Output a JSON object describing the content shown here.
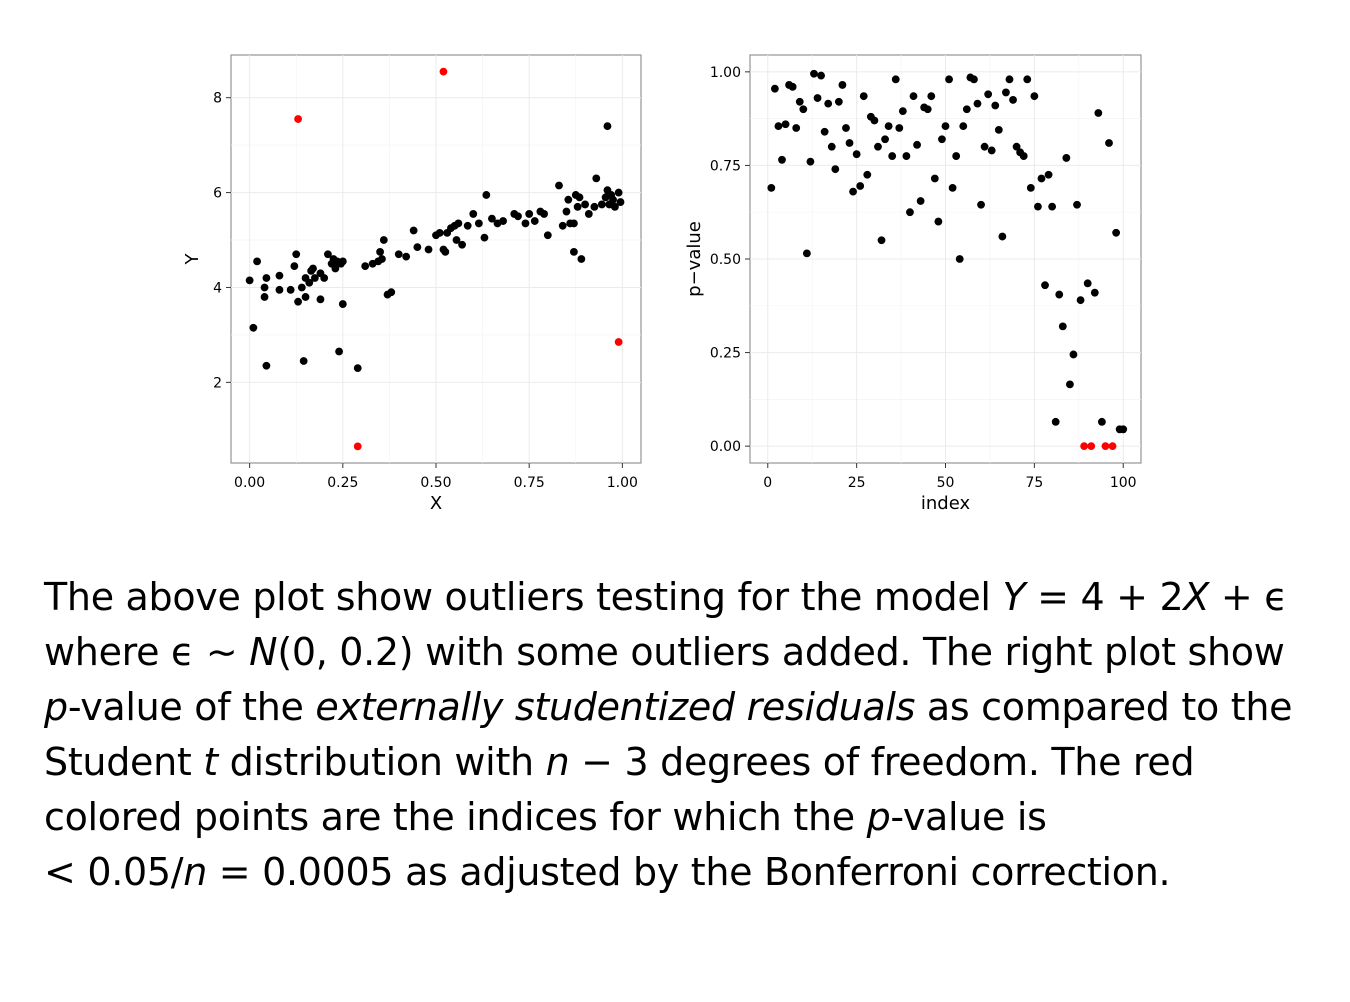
{
  "colors": {
    "outlier": "#ff0000",
    "normal": "#000000",
    "grid": "#ebebeb",
    "frame": "#7f7f7f"
  },
  "chart_data": [
    {
      "type": "scatter",
      "title": "",
      "xlabel": "X",
      "ylabel": "Y",
      "xlim": [
        -0.05,
        1.05
      ],
      "ylim": [
        0.3,
        8.9
      ],
      "xticks": [
        "0.00",
        "0.25",
        "0.50",
        "0.75",
        "1.00"
      ],
      "xtick_values": [
        0,
        0.25,
        0.5,
        0.75,
        1
      ],
      "yticks": [
        "2",
        "4",
        "6",
        "8"
      ],
      "ytick_values": [
        2,
        4,
        6,
        8
      ],
      "grid": true,
      "series": [
        {
          "color": "#000000",
          "points": [
            [
              0.0,
              4.15
            ],
            [
              0.01,
              3.15
            ],
            [
              0.04,
              4.0
            ],
            [
              0.04,
              3.8
            ],
            [
              0.045,
              4.2
            ],
            [
              0.045,
              2.35
            ],
            [
              0.08,
              4.25
            ],
            [
              0.08,
              3.95
            ],
            [
              0.11,
              3.95
            ],
            [
              0.12,
              4.45
            ],
            [
              0.125,
              4.7
            ],
            [
              0.13,
              3.7
            ],
            [
              0.14,
              4.0
            ],
            [
              0.145,
              2.45
            ],
            [
              0.15,
              4.2
            ],
            [
              0.15,
              3.8
            ],
            [
              0.16,
              4.1
            ],
            [
              0.165,
              4.35
            ],
            [
              0.17,
              4.4
            ],
            [
              0.175,
              4.2
            ],
            [
              0.19,
              3.75
            ],
            [
              0.19,
              4.3
            ],
            [
              0.2,
              4.2
            ],
            [
              0.21,
              4.7
            ],
            [
              0.22,
              4.5
            ],
            [
              0.225,
              4.6
            ],
            [
              0.23,
              4.4
            ],
            [
              0.235,
              4.55
            ],
            [
              0.24,
              2.65
            ],
            [
              0.245,
              4.5
            ],
            [
              0.25,
              4.55
            ],
            [
              0.25,
              3.65
            ],
            [
              0.31,
              4.45
            ],
            [
              0.33,
              4.5
            ],
            [
              0.345,
              4.55
            ],
            [
              0.35,
              4.75
            ],
            [
              0.355,
              4.6
            ],
            [
              0.36,
              5.0
            ],
            [
              0.37,
              3.85
            ],
            [
              0.38,
              3.9
            ],
            [
              0.4,
              4.7
            ],
            [
              0.42,
              4.65
            ],
            [
              0.44,
              5.2
            ],
            [
              0.45,
              4.85
            ],
            [
              0.48,
              4.8
            ],
            [
              0.5,
              5.1
            ],
            [
              0.51,
              5.15
            ],
            [
              0.52,
              4.8
            ],
            [
              0.525,
              4.75
            ],
            [
              0.53,
              5.15
            ],
            [
              0.54,
              5.25
            ],
            [
              0.55,
              5.3
            ],
            [
              0.555,
              5.0
            ],
            [
              0.56,
              5.35
            ],
            [
              0.57,
              4.9
            ],
            [
              0.585,
              5.3
            ],
            [
              0.6,
              5.55
            ],
            [
              0.615,
              5.35
            ],
            [
              0.63,
              5.05
            ],
            [
              0.635,
              5.95
            ],
            [
              0.65,
              5.45
            ],
            [
              0.665,
              5.35
            ],
            [
              0.68,
              5.4
            ],
            [
              0.71,
              5.55
            ],
            [
              0.72,
              5.5
            ],
            [
              0.74,
              5.35
            ],
            [
              0.75,
              5.55
            ],
            [
              0.765,
              5.4
            ],
            [
              0.78,
              5.6
            ],
            [
              0.79,
              5.55
            ],
            [
              0.8,
              5.1
            ],
            [
              0.83,
              6.15
            ],
            [
              0.84,
              5.3
            ],
            [
              0.85,
              5.6
            ],
            [
              0.855,
              5.85
            ],
            [
              0.86,
              5.35
            ],
            [
              0.87,
              5.35
            ],
            [
              0.875,
              5.95
            ],
            [
              0.88,
              5.7
            ],
            [
              0.885,
              5.9
            ],
            [
              0.89,
              4.6
            ],
            [
              0.9,
              5.75
            ],
            [
              0.91,
              5.55
            ],
            [
              0.925,
              5.7
            ],
            [
              0.93,
              6.3
            ],
            [
              0.945,
              5.75
            ],
            [
              0.955,
              5.9
            ],
            [
              0.96,
              6.05
            ],
            [
              0.96,
              7.4
            ],
            [
              0.965,
              5.75
            ],
            [
              0.97,
              5.95
            ],
            [
              0.975,
              5.85
            ],
            [
              0.98,
              5.7
            ],
            [
              0.99,
              6.0
            ],
            [
              0.995,
              5.8
            ],
            [
              0.87,
              4.75
            ],
            [
              0.29,
              2.3
            ],
            [
              0.02,
              4.55
            ]
          ]
        },
        {
          "color": "#ff0000",
          "points": [
            [
              0.13,
              7.55
            ],
            [
              0.52,
              8.55
            ],
            [
              0.29,
              0.65
            ],
            [
              0.99,
              2.85
            ]
          ]
        }
      ]
    },
    {
      "type": "scatter",
      "title": "",
      "xlabel": "index",
      "ylabel": "p−value",
      "xlim": [
        -5,
        105
      ],
      "ylim": [
        -0.045,
        1.045
      ],
      "xticks": [
        "0",
        "25",
        "50",
        "75",
        "100"
      ],
      "xtick_values": [
        0,
        25,
        50,
        75,
        100
      ],
      "yticks": [
        "0.00",
        "0.25",
        "0.50",
        "0.75",
        "1.00"
      ],
      "ytick_values": [
        0,
        0.25,
        0.5,
        0.75,
        1
      ],
      "grid": true,
      "series": [
        {
          "color": "#000000",
          "points": [
            [
              1,
              0.69
            ],
            [
              2,
              0.955
            ],
            [
              3,
              0.855
            ],
            [
              4,
              0.765
            ],
            [
              5,
              0.86
            ],
            [
              6,
              0.965
            ],
            [
              7,
              0.96
            ],
            [
              8,
              0.85
            ],
            [
              9,
              0.92
            ],
            [
              10,
              0.9
            ],
            [
              11,
              0.515
            ],
            [
              12,
              0.76
            ],
            [
              13,
              0.995
            ],
            [
              14,
              0.93
            ],
            [
              15,
              0.99
            ],
            [
              16,
              0.84
            ],
            [
              17,
              0.915
            ],
            [
              18,
              0.8
            ],
            [
              19,
              0.74
            ],
            [
              20,
              0.92
            ],
            [
              21,
              0.965
            ],
            [
              22,
              0.85
            ],
            [
              23,
              0.81
            ],
            [
              24,
              0.68
            ],
            [
              25,
              0.78
            ],
            [
              26,
              0.695
            ],
            [
              27,
              0.935
            ],
            [
              28,
              0.725
            ],
            [
              29,
              0.88
            ],
            [
              30,
              0.87
            ],
            [
              31,
              0.8
            ],
            [
              32,
              0.55
            ],
            [
              33,
              0.82
            ],
            [
              34,
              0.855
            ],
            [
              35,
              0.775
            ],
            [
              36,
              0.98
            ],
            [
              37,
              0.85
            ],
            [
              38,
              0.895
            ],
            [
              39,
              0.775
            ],
            [
              40,
              0.625
            ],
            [
              41,
              0.935
            ],
            [
              42,
              0.805
            ],
            [
              43,
              0.655
            ],
            [
              44,
              0.905
            ],
            [
              45,
              0.9
            ],
            [
              46,
              0.935
            ],
            [
              47,
              0.715
            ],
            [
              48,
              0.6
            ],
            [
              49,
              0.82
            ],
            [
              50,
              0.855
            ],
            [
              51,
              0.98
            ],
            [
              52,
              0.69
            ],
            [
              53,
              0.775
            ],
            [
              54,
              0.5
            ],
            [
              55,
              0.855
            ],
            [
              56,
              0.9
            ],
            [
              57,
              0.985
            ],
            [
              58,
              0.98
            ],
            [
              59,
              0.915
            ],
            [
              60,
              0.645
            ],
            [
              61,
              0.8
            ],
            [
              62,
              0.94
            ],
            [
              63,
              0.79
            ],
            [
              64,
              0.91
            ],
            [
              65,
              0.845
            ],
            [
              66,
              0.56
            ],
            [
              67,
              0.945
            ],
            [
              68,
              0.98
            ],
            [
              69,
              0.925
            ],
            [
              70,
              0.8
            ],
            [
              71,
              0.785
            ],
            [
              72,
              0.775
            ],
            [
              73,
              0.98
            ],
            [
              74,
              0.69
            ],
            [
              75,
              0.935
            ],
            [
              76,
              0.64
            ],
            [
              77,
              0.715
            ],
            [
              78,
              0.43
            ],
            [
              79,
              0.725
            ],
            [
              80,
              0.64
            ],
            [
              81,
              0.065
            ],
            [
              82,
              0.405
            ],
            [
              83,
              0.32
            ],
            [
              84,
              0.77
            ],
            [
              85,
              0.165
            ],
            [
              86,
              0.245
            ],
            [
              87,
              0.645
            ],
            [
              88,
              0.39
            ],
            [
              90,
              0.435
            ],
            [
              92,
              0.41
            ],
            [
              93,
              0.89
            ],
            [
              94,
              0.065
            ],
            [
              96,
              0.81
            ],
            [
              98,
              0.57
            ],
            [
              99,
              0.045
            ],
            [
              100,
              0.045
            ]
          ]
        },
        {
          "color": "#ff0000",
          "points": [
            [
              89,
              0.0
            ],
            [
              91,
              0.0
            ],
            [
              95,
              0.0
            ],
            [
              97,
              0.0
            ]
          ]
        }
      ]
    }
  ],
  "caption": {
    "l1": "The above plot show outliers testing for the model ",
    "l1_math_y": "Y",
    "l1_math_rest": " = 4 + 2",
    "l1_math_x": "X",
    "l1_math_end": " + ϵ",
    "l2_a": "where ϵ ∼ ",
    "l2_n": "N",
    "l2_b": "(0, 0.2) with some outliers added.  The right plot show",
    "l3_p": "p",
    "l3_a": "-value of the ",
    "l3_it": "externally studentized residuals",
    "l3_b": " as compared to the",
    "l4_a": "Student ",
    "l4_t": "t",
    "l4_b": " distribution with ",
    "l4_n": "n",
    "l4_c": " − 3 degrees of freedom.  The red",
    "l5_a": "colored points are the indices for which the ",
    "l5_p": "p",
    "l5_b": "-value is",
    "l6_a": "< 0.05/",
    "l6_n": "n",
    "l6_b": " = 0.0005 as adjusted by the Bonferroni correction."
  }
}
